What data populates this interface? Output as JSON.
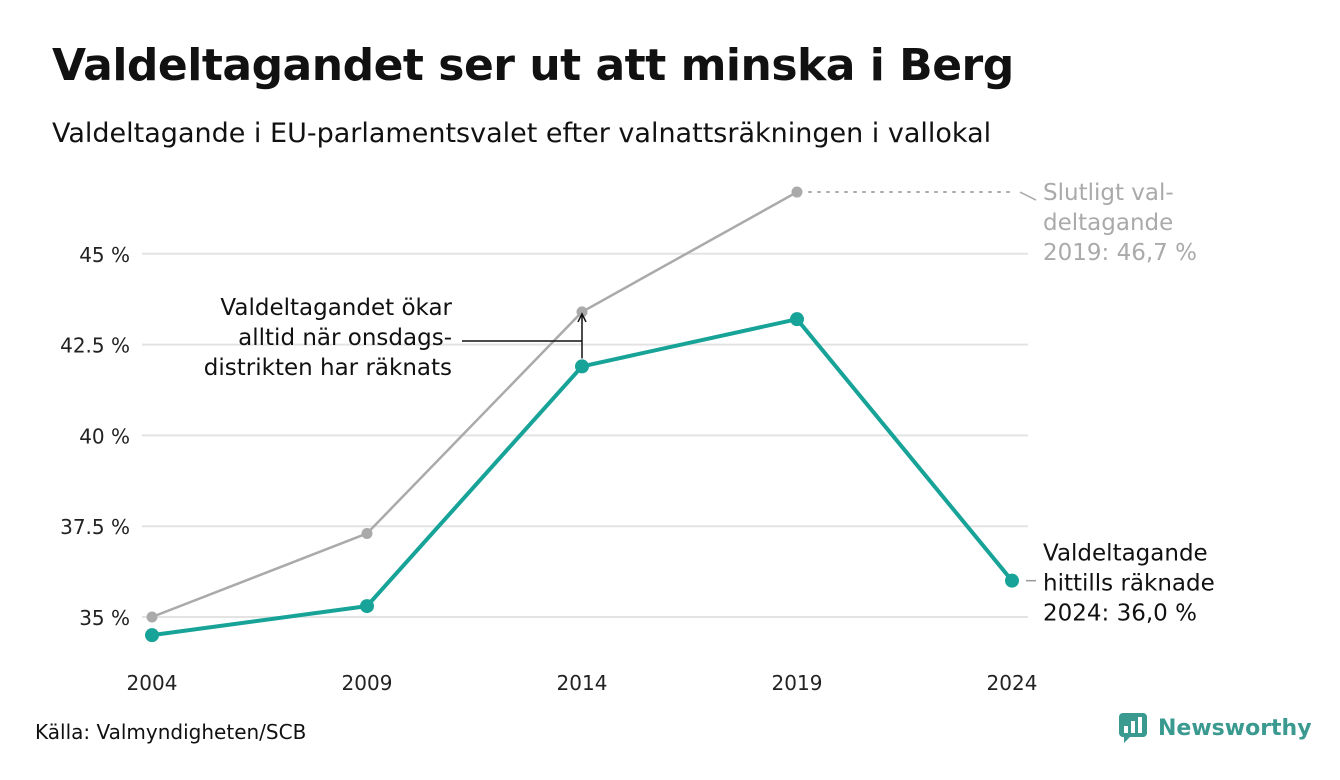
{
  "title": "Valdeltagandet ser ut att minska i Berg",
  "subtitle": "Valdeltagande i EU-parlamentsvalet efter valnattsräkningen i vallokal",
  "source": "Källa: Valmyndigheten/SCB",
  "brand": "Newsworthy",
  "colors": {
    "primary": "#17a397",
    "secondary": "#aaaaaa",
    "grid": "#e3e3e3",
    "annotation_gray": "#aaaaaa",
    "brand": "#3a9a90"
  },
  "chart_data": {
    "type": "line",
    "x": [
      "2004",
      "2009",
      "2014",
      "2019",
      "2024"
    ],
    "ylim": [
      34.5,
      47.5
    ],
    "yticks": [
      35,
      37.5,
      40,
      42.5,
      45
    ],
    "ytick_labels": [
      "35 %",
      "37.5 %",
      "40 %",
      "42.5 %",
      "45 %"
    ],
    "grid": "horizontal",
    "series": [
      {
        "key": "final",
        "values": [
          35.0,
          37.3,
          43.4,
          46.7,
          null
        ]
      },
      {
        "key": "counted",
        "values": [
          34.5,
          35.3,
          41.9,
          43.2,
          36.0
        ]
      }
    ],
    "annotations": {
      "final_label": [
        "Slutligt val-",
        "deltagande",
        "2019: 46,7 %"
      ],
      "counted_label": [
        "Valdeltagande",
        "hittills räknade",
        "2024: 36,0 %"
      ],
      "wednesday_note": [
        "Valdeltagandet ökar",
        "alltid när onsdags-",
        "distrikten har räknats"
      ]
    }
  }
}
